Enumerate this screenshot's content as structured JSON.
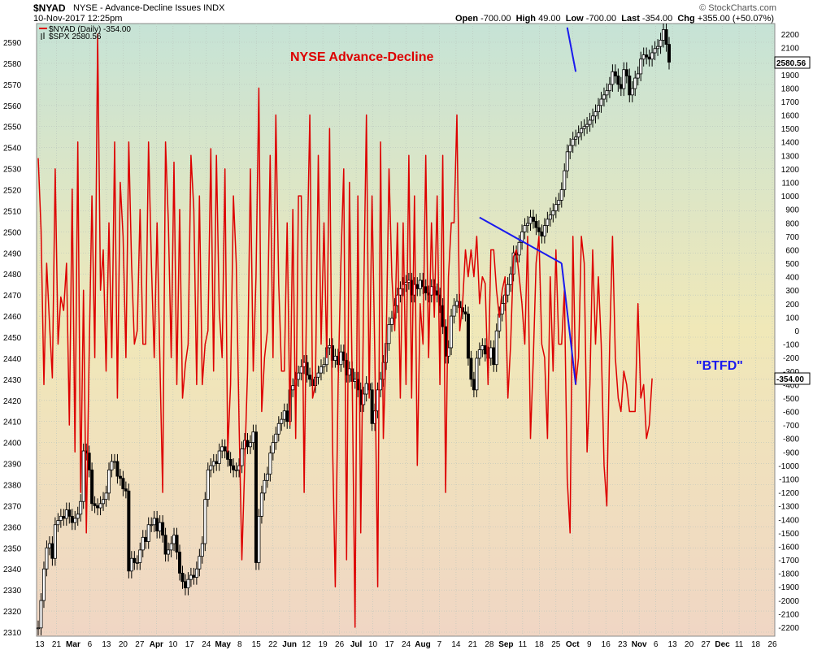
{
  "header": {
    "symbol": "$NYAD",
    "description": "NYSE - Advance-Decline Issues  INDX",
    "date": "10-Nov-2017 12:25pm",
    "brand": "© StockCharts.com",
    "open_label": "Open",
    "open": "-700.00",
    "high_label": "High",
    "high": "49.00",
    "low_label": "Low",
    "low": "-700.00",
    "last_label": "Last",
    "last": "-354.00",
    "chg_label": "Chg",
    "chg": "+355.00 (+50.07%)"
  },
  "legend": {
    "nyad": "$NYAD (Daily) -354.00",
    "spx": "$SPX 2580.56"
  },
  "annotations": {
    "title": "NYSE Advance-Decline",
    "btfd": "\"BTFD\""
  },
  "colors": {
    "nyad_line": "#dd0000",
    "candles": "#000000",
    "trendlines": "#1a1aee",
    "annotation_red": "#dd0000",
    "annotation_blue": "#1a1aee",
    "bg_top": "#c6e3d6",
    "bg_mid": "#f0e8b8",
    "bg_bottom": "#f0d6c4"
  },
  "chart_data": {
    "type": "line",
    "title": "NYSE Advance-Decline",
    "x_tick_labels": [
      "13",
      "21",
      "Mar",
      "6",
      "13",
      "20",
      "27",
      "Apr",
      "10",
      "17",
      "24",
      "May",
      "8",
      "15",
      "22",
      "Jun",
      "12",
      "19",
      "26",
      "Jul",
      "10",
      "17",
      "24",
      "Aug",
      "7",
      "14",
      "21",
      "28",
      "Sep",
      "11",
      "18",
      "25",
      "Oct",
      "9",
      "16",
      "23",
      "Nov",
      "6",
      "13",
      "20",
      "27",
      "Dec",
      "11",
      "18",
      "26"
    ],
    "left_axis": {
      "label": "$SPX",
      "ylim": [
        2305,
        2600
      ],
      "ticks": [
        2310,
        2320,
        2330,
        2340,
        2350,
        2360,
        2370,
        2380,
        2390,
        2400,
        2410,
        2420,
        2430,
        2440,
        2450,
        2460,
        2470,
        2480,
        2490,
        2500,
        2510,
        2520,
        2530,
        2540,
        2550,
        2560,
        2570,
        2580,
        2590
      ]
    },
    "right_axis": {
      "label": "$NYAD",
      "ylim": [
        -2250,
        2270
      ],
      "ticks": [
        2200,
        2100,
        2000,
        1900,
        1800,
        1700,
        1600,
        1500,
        1400,
        1300,
        1200,
        1100,
        1000,
        900,
        800,
        700,
        600,
        500,
        400,
        300,
        200,
        100,
        0,
        -100,
        -200,
        -300,
        -400,
        -500,
        -600,
        -700,
        -800,
        -900,
        -1000,
        -1100,
        -1200,
        -1300,
        -1400,
        -1500,
        -1600,
        -1700,
        -1800,
        -1900,
        -2000,
        -2100,
        -2200
      ]
    },
    "last_value_tags": {
      "spx": "2580.56",
      "nyad": "-354.00"
    },
    "series": [
      {
        "name": "$NYAD (Daily)",
        "axis": "right",
        "style": "line",
        "values": [
          1280,
          750,
          -400,
          500,
          50,
          -350,
          1200,
          -100,
          250,
          150,
          500,
          -700,
          1050,
          -900,
          1400,
          -1200,
          300,
          -1500,
          -200,
          1000,
          -200,
          2200,
          300,
          600,
          -300,
          800,
          -200,
          1400,
          -500,
          1100,
          700,
          -200,
          1400,
          500,
          -100,
          0,
          900,
          -100,
          -100,
          1400,
          500,
          -200,
          800,
          -200,
          -1200,
          1400,
          800,
          -200,
          1250,
          -400,
          900,
          -500,
          -250,
          -100,
          1300,
          900,
          -400,
          1000,
          -400,
          -100,
          0,
          1350,
          -300,
          1300,
          150,
          -200,
          1200,
          -900,
          -400,
          1000,
          500,
          -700,
          -1700,
          -1000,
          -300,
          1200,
          -300,
          400,
          1800,
          -600,
          -200,
          0,
          1300,
          -200,
          1600,
          350,
          -300,
          -300,
          800,
          -700,
          900,
          -800,
          1000,
          1000,
          -1200,
          500,
          1600,
          -500,
          -400,
          1300,
          -100,
          800,
          -200,
          1500,
          -800,
          -1900,
          -400,
          500,
          1200,
          -1700,
          1100,
          -400,
          -2200,
          1000,
          -1500,
          200,
          1600,
          -500,
          1000,
          -200,
          -1900,
          1400,
          -800,
          -100,
          1200,
          400,
          0,
          800,
          -500,
          800,
          -400,
          1300,
          -500,
          1000,
          -1000,
          200,
          -100,
          1300,
          -200,
          800,
          100,
          1000,
          -400,
          1300,
          -1200,
          400,
          800,
          800,
          1600,
          0,
          200,
          600,
          400,
          600,
          400,
          700,
          200,
          400,
          350,
          -400,
          600,
          600,
          300,
          100,
          300,
          400,
          -500,
          -100,
          550,
          600,
          400,
          200,
          -100,
          700,
          -800,
          -200,
          500,
          700,
          -100,
          -200,
          -800,
          400,
          -300,
          600,
          -100,
          -100,
          300,
          -1100,
          -1500,
          700,
          -400,
          -200,
          700,
          500,
          -900,
          -400,
          600,
          -100,
          400,
          -100,
          -1000,
          -1300,
          -100,
          700,
          -200,
          -500,
          -600,
          -300,
          -400,
          -600,
          -600,
          -600,
          200,
          -500,
          -400,
          -800,
          -700,
          -354
        ]
      },
      {
        "name": "$SPX",
        "axis": "left",
        "style": "candles",
        "close_values": [
          2312,
          2325,
          2340,
          2350,
          2352,
          2345,
          2361,
          2363,
          2365,
          2364,
          2368,
          2365,
          2362,
          2364,
          2366,
          2372,
          2396,
          2395,
          2387,
          2371,
          2370,
          2369,
          2371,
          2373,
          2376,
          2387,
          2391,
          2391,
          2384,
          2383,
          2378,
          2377,
          2339,
          2345,
          2343,
          2343,
          2349,
          2355,
          2353,
          2361,
          2361,
          2364,
          2358,
          2362,
          2356,
          2347,
          2349,
          2352,
          2356,
          2348,
          2338,
          2334,
          2331,
          2335,
          2337,
          2336,
          2340,
          2346,
          2352,
          2373,
          2387,
          2389,
          2391,
          2390,
          2396,
          2398,
          2396,
          2392,
          2389,
          2387,
          2387,
          2389,
          2397,
          2401,
          2398,
          2400,
          2405,
          2343,
          2365,
          2376,
          2382,
          2385,
          2395,
          2400,
          2404,
          2409,
          2411,
          2415,
          2410,
          2425,
          2427,
          2430,
          2433,
          2436,
          2438,
          2432,
          2430,
          2427,
          2431,
          2433,
          2436,
          2437,
          2445,
          2446,
          2439,
          2441,
          2437,
          2443,
          2439,
          2432,
          2435,
          2429,
          2430,
          2425,
          2418,
          2423,
          2428,
          2425,
          2409,
          2415,
          2425,
          2430,
          2438,
          2447,
          2456,
          2459,
          2465,
          2470,
          2473,
          2475,
          2476,
          2477,
          2470,
          2475,
          2473,
          2477,
          2474,
          2471,
          2470,
          2474,
          2472,
          2470,
          2465,
          2455,
          2441,
          2445,
          2460,
          2465,
          2467,
          2464,
          2462,
          2461,
          2440,
          2430,
          2425,
          2440,
          2444,
          2446,
          2442,
          2440,
          2445,
          2437,
          2453,
          2461,
          2466,
          2470,
          2475,
          2480,
          2490,
          2489,
          2495,
          2500,
          2503,
          2504,
          2507,
          2505,
          2502,
          2500,
          2498,
          2503,
          2506,
          2508,
          2510,
          2513,
          2515,
          2520,
          2529,
          2538,
          2541,
          2544,
          2545,
          2547,
          2549,
          2550,
          2551,
          2553,
          2555,
          2557,
          2560,
          2563,
          2565,
          2567,
          2570,
          2576,
          2574,
          2570,
          2568,
          2577,
          2574,
          2565,
          2568,
          2573,
          2575,
          2582,
          2584,
          2583,
          2582,
          2585,
          2587,
          2588,
          2591,
          2596,
          2589,
          2580.56
        ]
      }
    ],
    "trendlines": [
      {
        "axis": "right",
        "points": [
          [
            156,
            840
          ],
          [
            185,
            500
          ]
        ]
      },
      {
        "axis": "right",
        "points": [
          [
            185,
            500
          ],
          [
            190,
            -400
          ]
        ]
      },
      {
        "axis": "left",
        "points": [
          [
            187,
            2597
          ],
          [
            190,
            2576
          ]
        ]
      }
    ],
    "annotations": [
      "NYSE Advance-Decline",
      "\"BTFD\""
    ]
  }
}
